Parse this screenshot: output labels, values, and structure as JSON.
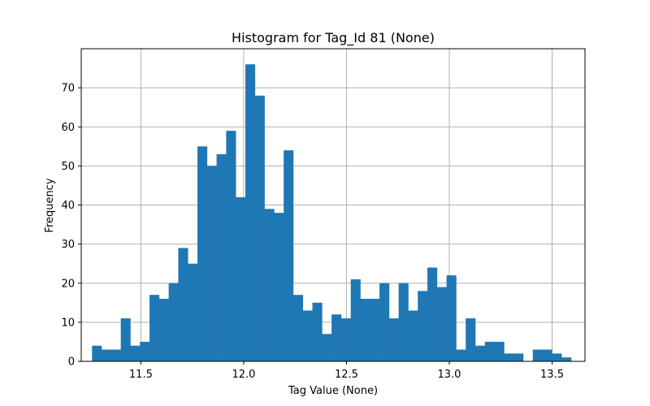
{
  "chart_data": {
    "type": "bar",
    "title": "Histogram for Tag_Id 81 (None)",
    "xlabel": "Tag Value (None)",
    "ylabel": "Frequency",
    "xlim": [
      11.21,
      13.66
    ],
    "ylim": [
      0,
      80
    ],
    "x_ticks": [
      11.5,
      12.0,
      12.5,
      13.0,
      13.5
    ],
    "x_tick_labels": [
      "11.5",
      "12.0",
      "12.5",
      "13.0",
      "13.5"
    ],
    "y_ticks": [
      0,
      10,
      20,
      30,
      40,
      50,
      60,
      70
    ],
    "y_tick_labels": [
      "0",
      "10",
      "20",
      "30",
      "40",
      "50",
      "60",
      "70"
    ],
    "grid": true,
    "bar_color": "#1f77b4",
    "bins_start": 11.2625,
    "bin_width": 0.0466,
    "values": [
      4,
      3,
      3,
      11,
      4,
      5,
      17,
      16,
      20,
      29,
      25,
      55,
      50,
      53,
      59,
      42,
      76,
      68,
      39,
      38,
      54,
      17,
      13,
      15,
      7,
      12,
      11,
      21,
      16,
      16,
      20,
      11,
      20,
      13,
      18,
      24,
      19,
      22,
      3,
      11,
      4,
      5,
      5,
      2,
      2,
      0,
      3,
      3,
      2,
      1
    ]
  }
}
